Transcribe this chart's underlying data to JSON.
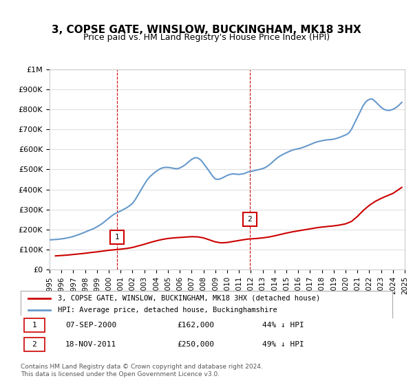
{
  "title": "3, COPSE GATE, WINSLOW, BUCKINGHAM, MK18 3HX",
  "subtitle": "Price paid vs. HM Land Registry's House Price Index (HPI)",
  "legend_label_red": "3, COPSE GATE, WINSLOW, BUCKINGHAM, MK18 3HX (detached house)",
  "legend_label_blue": "HPI: Average price, detached house, Buckinghamshire",
  "annotation1_label": "1",
  "annotation1_date": "07-SEP-2000",
  "annotation1_price": "£162,000",
  "annotation1_hpi": "44% ↓ HPI",
  "annotation2_label": "2",
  "annotation2_date": "18-NOV-2011",
  "annotation2_price": "£250,000",
  "annotation2_hpi": "49% ↓ HPI",
  "footer": "Contains HM Land Registry data © Crown copyright and database right 2024.\nThis data is licensed under the Open Government Licence v3.0.",
  "red_color": "#cc0000",
  "blue_color": "#6699cc",
  "marker_box_color": "#cc0000",
  "ylim": [
    0,
    1000000
  ],
  "yticks": [
    0,
    100000,
    200000,
    300000,
    400000,
    500000,
    600000,
    700000,
    800000,
    900000,
    1000000
  ],
  "ytick_labels": [
    "£0",
    "£100K",
    "£200K",
    "£300K",
    "£400K",
    "£500K",
    "£600K",
    "£700K",
    "£800K",
    "£900K",
    "£1M"
  ],
  "hpi_years": [
    1995.0,
    1995.25,
    1995.5,
    1995.75,
    1996.0,
    1996.25,
    1996.5,
    1996.75,
    1997.0,
    1997.25,
    1997.5,
    1997.75,
    1998.0,
    1998.25,
    1998.5,
    1998.75,
    1999.0,
    1999.25,
    1999.5,
    1999.75,
    2000.0,
    2000.25,
    2000.5,
    2000.75,
    2001.0,
    2001.25,
    2001.5,
    2001.75,
    2002.0,
    2002.25,
    2002.5,
    2002.75,
    2003.0,
    2003.25,
    2003.5,
    2003.75,
    2004.0,
    2004.25,
    2004.5,
    2004.75,
    2005.0,
    2005.25,
    2005.5,
    2005.75,
    2006.0,
    2006.25,
    2006.5,
    2006.75,
    2007.0,
    2007.25,
    2007.5,
    2007.75,
    2008.0,
    2008.25,
    2008.5,
    2008.75,
    2009.0,
    2009.25,
    2009.5,
    2009.75,
    2010.0,
    2010.25,
    2010.5,
    2010.75,
    2011.0,
    2011.25,
    2011.5,
    2011.75,
    2012.0,
    2012.25,
    2012.5,
    2012.75,
    2013.0,
    2013.25,
    2013.5,
    2013.75,
    2014.0,
    2014.25,
    2014.5,
    2014.75,
    2015.0,
    2015.25,
    2015.5,
    2015.75,
    2016.0,
    2016.25,
    2016.5,
    2016.75,
    2017.0,
    2017.25,
    2017.5,
    2017.75,
    2018.0,
    2018.25,
    2018.5,
    2018.75,
    2019.0,
    2019.25,
    2019.5,
    2019.75,
    2020.0,
    2020.25,
    2020.5,
    2020.75,
    2021.0,
    2021.25,
    2021.5,
    2021.75,
    2022.0,
    2022.25,
    2022.5,
    2022.75,
    2023.0,
    2023.25,
    2023.5,
    2023.75,
    2024.0,
    2024.25,
    2024.5,
    2024.75
  ],
  "hpi_values": [
    148000,
    149000,
    150000,
    151000,
    153000,
    155000,
    158000,
    161000,
    165000,
    170000,
    175000,
    181000,
    187000,
    193000,
    199000,
    205000,
    213000,
    222000,
    232000,
    244000,
    256000,
    268000,
    278000,
    285000,
    292000,
    300000,
    308000,
    318000,
    330000,
    350000,
    375000,
    400000,
    425000,
    448000,
    465000,
    478000,
    490000,
    500000,
    507000,
    510000,
    510000,
    508000,
    505000,
    503000,
    507000,
    515000,
    525000,
    538000,
    550000,
    558000,
    558000,
    548000,
    530000,
    510000,
    490000,
    468000,
    452000,
    450000,
    455000,
    462000,
    470000,
    475000,
    478000,
    476000,
    475000,
    477000,
    480000,
    487000,
    490000,
    493000,
    497000,
    500000,
    504000,
    510000,
    520000,
    532000,
    546000,
    558000,
    568000,
    576000,
    583000,
    590000,
    596000,
    600000,
    603000,
    607000,
    612000,
    618000,
    624000,
    630000,
    636000,
    640000,
    643000,
    646000,
    648000,
    649000,
    651000,
    655000,
    660000,
    666000,
    672000,
    680000,
    700000,
    730000,
    760000,
    790000,
    820000,
    840000,
    850000,
    852000,
    840000,
    825000,
    810000,
    800000,
    795000,
    795000,
    800000,
    808000,
    820000,
    835000
  ],
  "red_years": [
    1995.5,
    1996.0,
    1996.5,
    1997.0,
    1997.5,
    1998.0,
    1998.5,
    1999.0,
    1999.5,
    2000.0,
    2000.75,
    2001.5,
    2002.0,
    2002.5,
    2003.0,
    2003.5,
    2004.0,
    2004.5,
    2005.0,
    2005.5,
    2006.0,
    2006.5,
    2007.0,
    2007.5,
    2008.0,
    2008.5,
    2009.0,
    2009.5,
    2010.0,
    2010.5,
    2011.0,
    2011.75,
    2012.5,
    2013.0,
    2013.5,
    2014.0,
    2014.5,
    2015.0,
    2015.5,
    2016.0,
    2016.5,
    2017.0,
    2017.5,
    2018.0,
    2018.5,
    2019.0,
    2019.5,
    2020.0,
    2020.5,
    2021.0,
    2021.5,
    2022.0,
    2022.5,
    2023.0,
    2023.5,
    2024.0,
    2024.5,
    2024.75
  ],
  "red_values": [
    68000,
    70000,
    72000,
    75000,
    78000,
    81000,
    85000,
    88000,
    92000,
    96000,
    100000,
    105000,
    110000,
    118000,
    126000,
    135000,
    143000,
    150000,
    155000,
    158000,
    160000,
    162000,
    164000,
    163000,
    158000,
    148000,
    138000,
    133000,
    135000,
    140000,
    145000,
    152000,
    155000,
    158000,
    162000,
    168000,
    175000,
    182000,
    188000,
    193000,
    198000,
    203000,
    208000,
    212000,
    215000,
    218000,
    222000,
    228000,
    240000,
    265000,
    295000,
    320000,
    340000,
    355000,
    368000,
    380000,
    400000,
    410000
  ],
  "sale1_year": 2000.69,
  "sale1_value": 162000,
  "sale2_year": 2011.89,
  "sale2_value": 250000,
  "background_color": "#ffffff",
  "grid_color": "#e0e0e0",
  "dashed_vertical_color": "#cc0000"
}
